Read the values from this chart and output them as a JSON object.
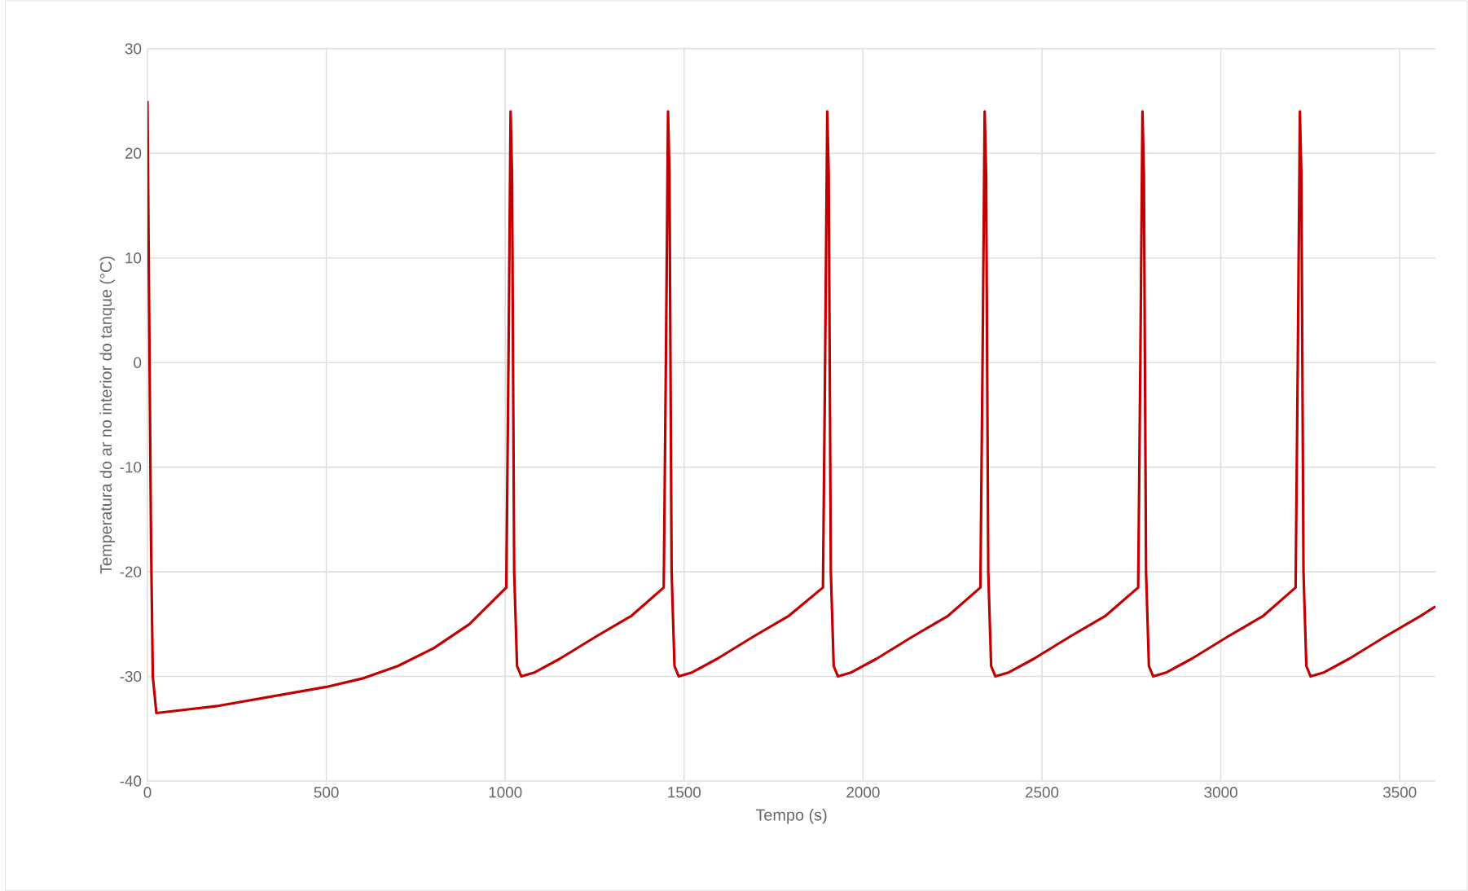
{
  "chart_data": {
    "type": "line",
    "xlabel": "Tempo  (s)",
    "ylabel": "Temperatura  do ar no interior do tanque (°C)",
    "xlim": [
      0,
      3600
    ],
    "xticks": [
      0,
      500,
      1000,
      1500,
      2000,
      2500,
      3000,
      3500
    ],
    "ylim": [
      -40,
      30
    ],
    "yticks": [
      -40,
      -30,
      -20,
      -10,
      0,
      10,
      20,
      30
    ],
    "grid": true,
    "marker": "none",
    "line_style": "solid",
    "series": [
      {
        "color": "#c00000",
        "x": [
          0,
          10,
          15,
          25,
          50,
          200,
          400,
          500,
          600,
          700,
          800,
          900,
          1003,
          1009,
          1015,
          1019,
          1025,
          1033,
          1045,
          1083,
          1153,
          1253,
          1353,
          1443,
          1449,
          1455,
          1459,
          1465,
          1473,
          1485,
          1523,
          1593,
          1693,
          1793,
          1888,
          1894,
          1900,
          1904,
          1910,
          1918,
          1930,
          1968,
          2038,
          2138,
          2238,
          2328,
          2334,
          2340,
          2344,
          2350,
          2358,
          2370,
          2408,
          2478,
          2578,
          2678,
          2769,
          2775,
          2781,
          2785,
          2791,
          2799,
          2811,
          2849,
          2919,
          3019,
          3119,
          3209,
          3215,
          3221,
          3225,
          3231,
          3239,
          3251,
          3289,
          3359,
          3459,
          3559,
          3600
        ],
        "values": [
          25,
          -17,
          -30,
          -33.5,
          -33.4,
          -32.8,
          -31.6,
          -31,
          -30.2,
          -29,
          -27.3,
          -25,
          -21.5,
          0,
          24,
          18,
          -20,
          -29,
          -30,
          -29.6,
          -28.3,
          -26.2,
          -24.2,
          -21.5,
          0,
          24,
          18,
          -20,
          -29,
          -30,
          -29.6,
          -28.3,
          -26.2,
          -24.2,
          -21.5,
          0,
          24,
          18,
          -20,
          -29,
          -30,
          -29.6,
          -28.3,
          -26.2,
          -24.2,
          -21.5,
          0,
          24,
          18,
          -20,
          -29,
          -30,
          -29.6,
          -28.3,
          -26.2,
          -24.2,
          -21.5,
          0,
          24,
          18,
          -20,
          -29,
          -30,
          -29.6,
          -28.3,
          -26.2,
          -24.2,
          -21.5,
          0,
          24,
          18,
          -20,
          -29,
          -30,
          -29.6,
          -28.3,
          -26.2,
          -24.2,
          -23.3
        ]
      }
    ]
  }
}
